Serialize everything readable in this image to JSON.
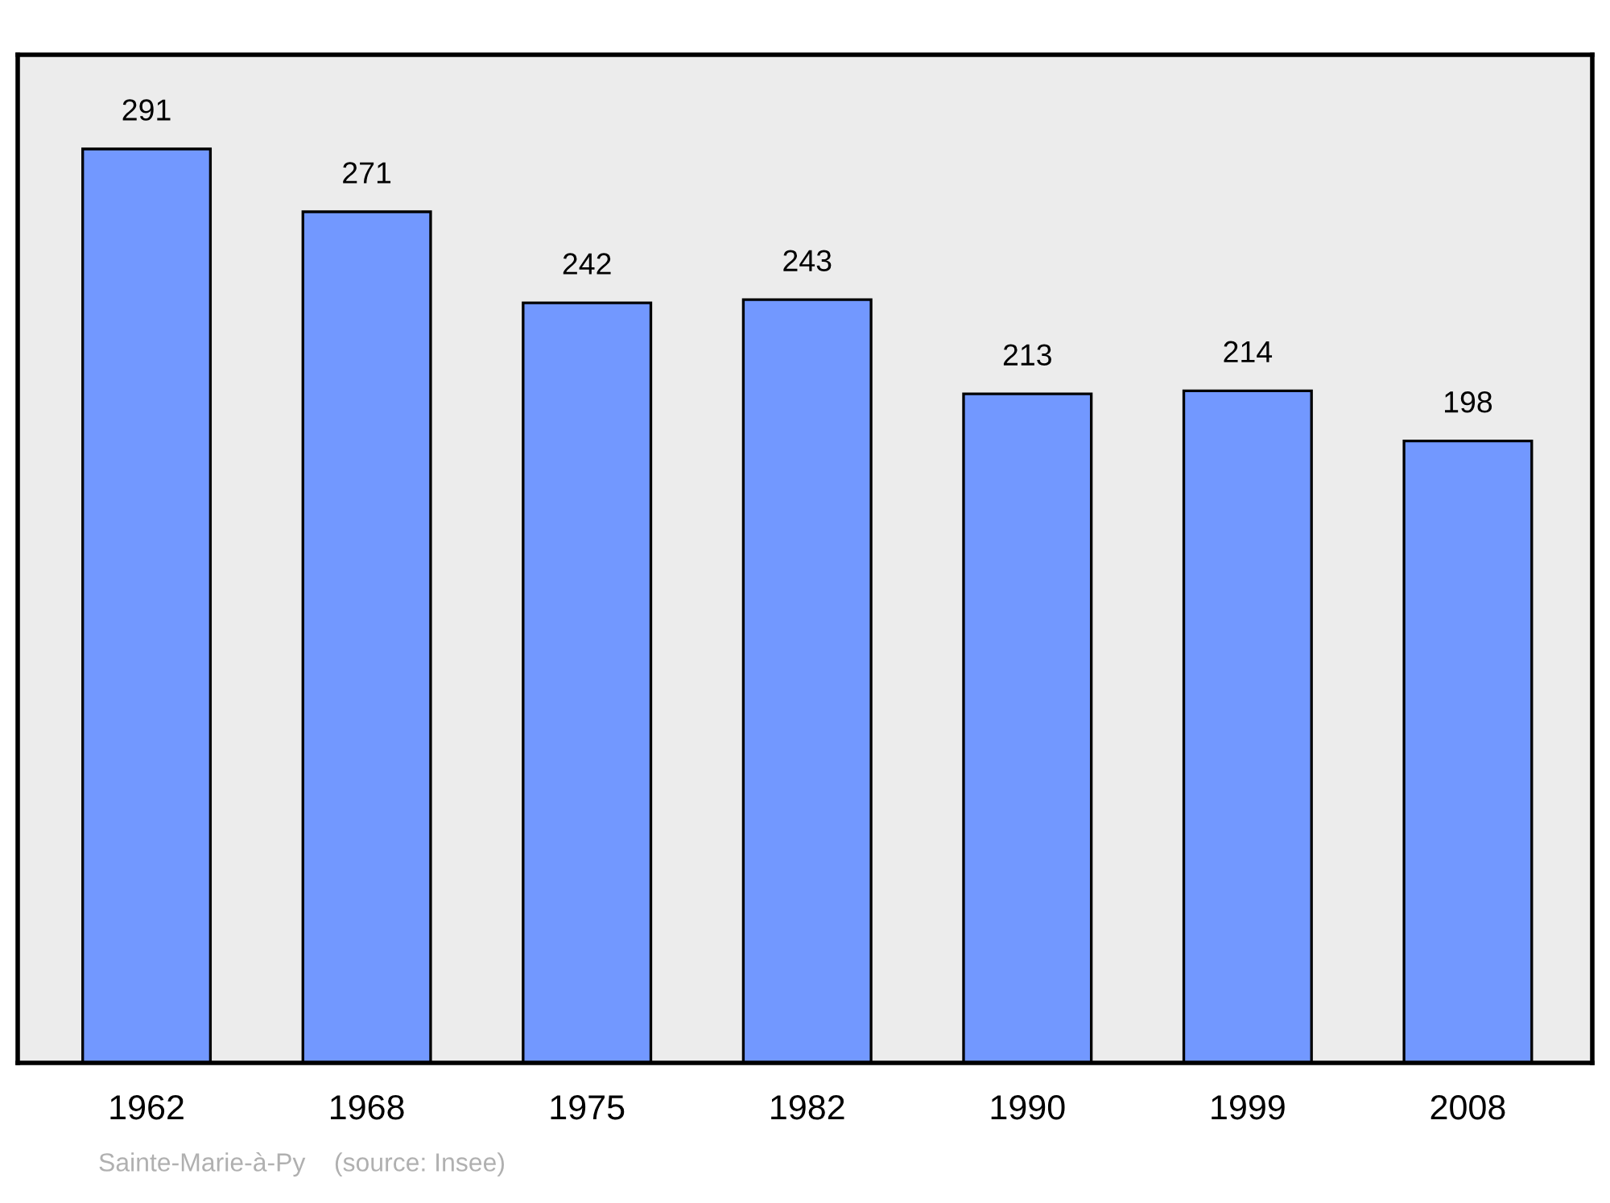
{
  "chart_data": {
    "type": "bar",
    "categories": [
      "1962",
      "1968",
      "1975",
      "1982",
      "1990",
      "1999",
      "2008"
    ],
    "values": [
      291,
      271,
      242,
      243,
      213,
      214,
      198
    ],
    "color": "#7298ff",
    "ylim": [
      0,
      321
    ],
    "data_labels": true,
    "grid": false,
    "legend": false,
    "tick_labels": "x",
    "annotations": [
      "Sainte-Marie-à-Py    (source: Insee)"
    ]
  }
}
